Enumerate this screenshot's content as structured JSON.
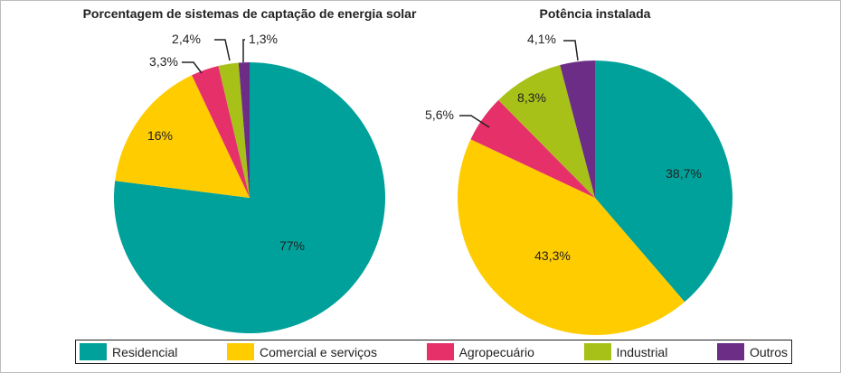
{
  "chart_data": [
    {
      "type": "pie",
      "title": "Porcentagem de sistemas de captação de energia solar",
      "categories": [
        "Residencial",
        "Comercial e serviços",
        "Agropecuário",
        "Industrial",
        "Outros"
      ],
      "values": [
        77,
        16,
        3.3,
        2.4,
        1.3
      ],
      "labels": [
        "77%",
        "16%",
        "3,3%",
        "2,4%",
        "1,3%"
      ]
    },
    {
      "type": "pie",
      "title": "Potência instalada",
      "categories": [
        "Residencial",
        "Comercial e serviços",
        "Agropecuário",
        "Industrial",
        "Outros"
      ],
      "values": [
        38.7,
        43.3,
        5.6,
        8.3,
        4.1
      ],
      "labels": [
        "38,7%",
        "43,3%",
        "5,6%",
        "8,3%",
        "4,1%"
      ]
    }
  ],
  "legend": [
    {
      "label": "Residencial",
      "color": "#00a19a"
    },
    {
      "label": "Comercial e serviços",
      "color": "#ffcc00"
    },
    {
      "label": "Agropecuário",
      "color": "#e6306a"
    },
    {
      "label": "Industrial",
      "color": "#a8c118"
    },
    {
      "label": "Outros",
      "color": "#6b2d86"
    }
  ]
}
